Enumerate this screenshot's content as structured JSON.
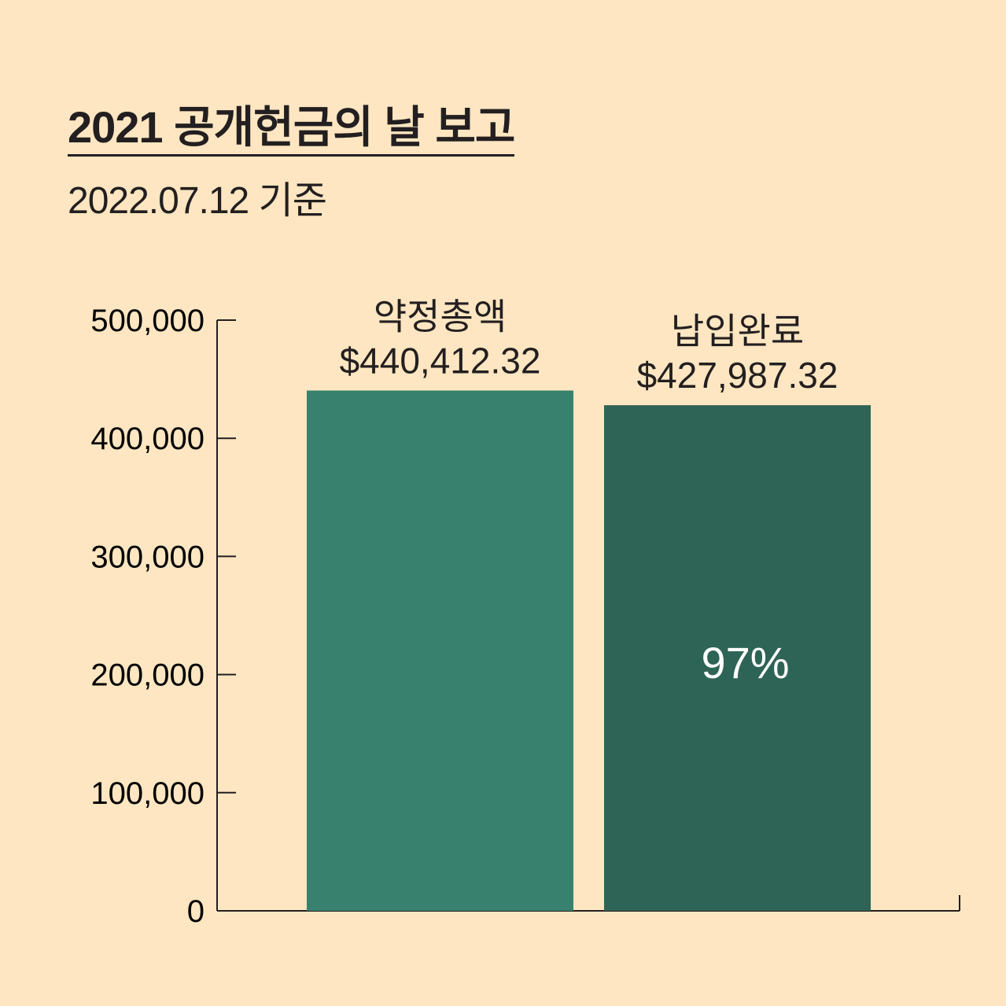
{
  "header": {
    "title": "2021 공개헌금의 날 보고",
    "subtitle": "2022.07.12 기준"
  },
  "colors": {
    "background": "#fde6c1",
    "bar_pledged": "#39816f",
    "bar_paid": "#2e6456",
    "axis": "#231f20"
  },
  "chart_data": {
    "type": "bar",
    "categories": [
      "약정총액",
      "납입완료"
    ],
    "values": [
      440412.32,
      427987.32
    ],
    "value_labels": [
      "$440,412.32",
      "$427,987.32"
    ],
    "bar_annotations": [
      "",
      "97%"
    ],
    "ylim": [
      0,
      500000
    ],
    "yticks": [
      0,
      100000,
      200000,
      300000,
      400000,
      500000
    ],
    "ytick_labels": [
      "0",
      "100,000",
      "200,000",
      "300,000",
      "400,000",
      "500,000"
    ],
    "xlabel": "",
    "ylabel": "",
    "grid": false
  }
}
